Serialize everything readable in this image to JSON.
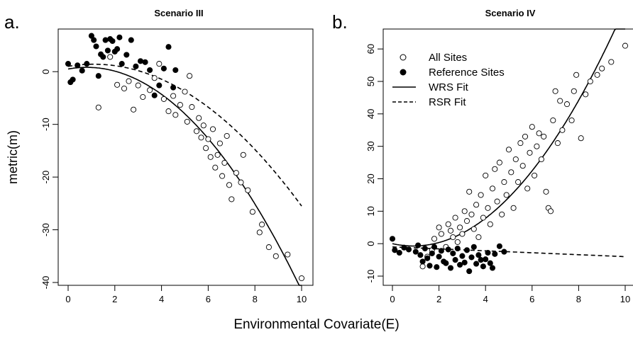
{
  "figure": {
    "panel_labels": [
      "a.",
      "b."
    ],
    "ylabel": "metric(m)",
    "xlabel": "Environmental Covariate(E)"
  },
  "legend": {
    "entries": [
      {
        "label": "All Sites",
        "marker": "open-circle"
      },
      {
        "label": "Reference Sites",
        "marker": "filled-circle"
      },
      {
        "label": "WRS Fit",
        "line": "solid"
      },
      {
        "label": "RSR Fit",
        "line": "dashed"
      }
    ],
    "placement": "top-left of panel b"
  },
  "chart_data": [
    {
      "type": "scatter",
      "title": "Scenario III",
      "xlim": [
        0,
        10
      ],
      "ylim": [
        -40,
        5
      ],
      "xticks": [
        0,
        2,
        4,
        6,
        8,
        10
      ],
      "yticks": [
        -40,
        -30,
        -20,
        -10,
        0
      ],
      "series": [
        {
          "name": "All Sites",
          "points": [
            [
              1.3,
              -6.8
            ],
            [
              1.8,
              2.8
            ],
            [
              2.1,
              -2.5
            ],
            [
              2.4,
              -3.2
            ],
            [
              2.6,
              -1.8
            ],
            [
              2.8,
              -7.2
            ],
            [
              3.0,
              -2.6
            ],
            [
              3.2,
              -4.8
            ],
            [
              3.5,
              -3.5
            ],
            [
              3.7,
              -1.2
            ],
            [
              3.9,
              1.5
            ],
            [
              4.1,
              -5.2
            ],
            [
              4.3,
              -7.5
            ],
            [
              4.5,
              -4.6
            ],
            [
              4.6,
              -8.2
            ],
            [
              4.8,
              -6.3
            ],
            [
              5.0,
              -3.8
            ],
            [
              5.1,
              -9.5
            ],
            [
              5.2,
              -0.8
            ],
            [
              5.3,
              -6.7
            ],
            [
              5.5,
              -11.3
            ],
            [
              5.6,
              -8.8
            ],
            [
              5.7,
              -12.5
            ],
            [
              5.8,
              -10.2
            ],
            [
              5.9,
              -14.5
            ],
            [
              6.0,
              -12.8
            ],
            [
              6.1,
              -16.2
            ],
            [
              6.2,
              -10.9
            ],
            [
              6.3,
              -18.2
            ],
            [
              6.4,
              -15.8
            ],
            [
              6.5,
              -13.6
            ],
            [
              6.6,
              -19.8
            ],
            [
              6.7,
              -17.3
            ],
            [
              6.8,
              -12.2
            ],
            [
              6.9,
              -21.5
            ],
            [
              7.0,
              -24.2
            ],
            [
              7.2,
              -19.2
            ],
            [
              7.4,
              -21.0
            ],
            [
              7.5,
              -15.8
            ],
            [
              7.7,
              -22.5
            ],
            [
              7.9,
              -26.6
            ],
            [
              8.2,
              -30.5
            ],
            [
              8.3,
              -29.0
            ],
            [
              8.6,
              -33.3
            ],
            [
              8.9,
              -35.0
            ],
            [
              9.4,
              -34.7
            ],
            [
              10.0,
              -39.2
            ]
          ]
        },
        {
          "name": "Reference Sites",
          "points": [
            [
              0.0,
              1.5
            ],
            [
              0.1,
              -2.0
            ],
            [
              0.2,
              -1.5
            ],
            [
              0.4,
              1.2
            ],
            [
              0.6,
              0.2
            ],
            [
              0.8,
              1.5
            ],
            [
              1.0,
              6.8
            ],
            [
              1.1,
              6.0
            ],
            [
              1.2,
              4.8
            ],
            [
              1.3,
              -0.8
            ],
            [
              1.4,
              3.3
            ],
            [
              1.5,
              2.8
            ],
            [
              1.6,
              6.0
            ],
            [
              1.7,
              4.0
            ],
            [
              1.8,
              6.2
            ],
            [
              1.9,
              5.8
            ],
            [
              2.0,
              3.8
            ],
            [
              2.1,
              4.3
            ],
            [
              2.2,
              6.5
            ],
            [
              2.3,
              1.5
            ],
            [
              2.5,
              3.2
            ],
            [
              2.7,
              6.0
            ],
            [
              2.9,
              1.0
            ],
            [
              3.1,
              2.0
            ],
            [
              3.3,
              1.8
            ],
            [
              3.5,
              0.3
            ],
            [
              3.7,
              -4.5
            ],
            [
              3.9,
              -2.6
            ],
            [
              4.1,
              0.6
            ],
            [
              4.3,
              4.7
            ],
            [
              4.5,
              -3.0
            ],
            [
              4.6,
              0.3
            ]
          ]
        }
      ],
      "fits": [
        {
          "name": "WRS Fit",
          "style": "solid",
          "coef": [
            0.5,
            0.8,
            -0.5
          ]
        },
        {
          "name": "RSR Fit",
          "style": "dashed",
          "coef": [
            1.0,
            0.75,
            -0.34
          ]
        }
      ]
    },
    {
      "type": "scatter",
      "title": "Scenario IV",
      "xlim": [
        0,
        10
      ],
      "ylim": [
        -10,
        62
      ],
      "xticks": [
        0,
        2,
        4,
        6,
        8,
        10
      ],
      "yticks": [
        -10,
        0,
        10,
        20,
        30,
        40,
        50,
        60
      ],
      "series": [
        {
          "name": "All Sites",
          "points": [
            [
              1.3,
              -7.0
            ],
            [
              1.5,
              -4.0
            ],
            [
              1.7,
              -2.0
            ],
            [
              1.8,
              1.5
            ],
            [
              2.0,
              5.0
            ],
            [
              2.1,
              3.0
            ],
            [
              2.3,
              -1.0
            ],
            [
              2.4,
              6.0
            ],
            [
              2.5,
              4.0
            ],
            [
              2.6,
              2.0
            ],
            [
              2.7,
              8.0
            ],
            [
              2.8,
              0.5
            ],
            [
              2.9,
              5.0
            ],
            [
              3.0,
              3.0
            ],
            [
              3.1,
              10.0
            ],
            [
              3.2,
              7.0
            ],
            [
              3.3,
              16.0
            ],
            [
              3.4,
              9.0
            ],
            [
              3.5,
              4.5
            ],
            [
              3.6,
              12.0
            ],
            [
              3.7,
              2.0
            ],
            [
              3.8,
              15.0
            ],
            [
              3.9,
              8.0
            ],
            [
              4.0,
              21.0
            ],
            [
              4.1,
              11.0
            ],
            [
              4.2,
              6.0
            ],
            [
              4.3,
              17.0
            ],
            [
              4.4,
              23.0
            ],
            [
              4.5,
              13.0
            ],
            [
              4.6,
              25.0
            ],
            [
              4.7,
              9.0
            ],
            [
              4.8,
              19.0
            ],
            [
              4.9,
              15.0
            ],
            [
              5.0,
              29.0
            ],
            [
              5.1,
              22.0
            ],
            [
              5.2,
              11.0
            ],
            [
              5.3,
              26.0
            ],
            [
              5.4,
              19.0
            ],
            [
              5.5,
              31.0
            ],
            [
              5.6,
              24.0
            ],
            [
              5.7,
              33.0
            ],
            [
              5.8,
              17.0
            ],
            [
              5.9,
              28.0
            ],
            [
              6.0,
              36.0
            ],
            [
              6.1,
              21.0
            ],
            [
              6.2,
              30.0
            ],
            [
              6.3,
              34.0
            ],
            [
              6.4,
              26.0
            ],
            [
              6.5,
              33.0
            ],
            [
              6.6,
              16.0
            ],
            [
              6.7,
              11.0
            ],
            [
              6.8,
              10.0
            ],
            [
              6.9,
              38.0
            ],
            [
              7.0,
              47.0
            ],
            [
              7.1,
              31.0
            ],
            [
              7.2,
              44.0
            ],
            [
              7.3,
              35.0
            ],
            [
              7.5,
              43.0
            ],
            [
              7.7,
              38.0
            ],
            [
              7.8,
              47.0
            ],
            [
              7.9,
              52.0
            ],
            [
              8.1,
              32.5
            ],
            [
              8.3,
              46.0
            ],
            [
              8.5,
              50.0
            ],
            [
              8.8,
              52.0
            ],
            [
              9.0,
              54.0
            ],
            [
              9.4,
              56.0
            ],
            [
              10.0,
              61.0
            ]
          ]
        },
        {
          "name": "Reference Sites",
          "points": [
            [
              0.0,
              1.5
            ],
            [
              0.1,
              -2.0
            ],
            [
              0.3,
              -2.8
            ],
            [
              0.5,
              -1.2
            ],
            [
              0.7,
              -1.8
            ],
            [
              1.0,
              -2.5
            ],
            [
              1.1,
              -0.5
            ],
            [
              1.2,
              -3.5
            ],
            [
              1.3,
              -5.5
            ],
            [
              1.4,
              -1.5
            ],
            [
              1.5,
              -4.5
            ],
            [
              1.6,
              -6.8
            ],
            [
              1.7,
              -3.0
            ],
            [
              1.8,
              -1.0
            ],
            [
              1.9,
              -7.2
            ],
            [
              2.0,
              -4.0
            ],
            [
              2.1,
              -2.2
            ],
            [
              2.2,
              -5.5
            ],
            [
              2.3,
              -6.0
            ],
            [
              2.4,
              -1.8
            ],
            [
              2.5,
              -7.5
            ],
            [
              2.6,
              -3.0
            ],
            [
              2.7,
              -5.0
            ],
            [
              2.8,
              -1.5
            ],
            [
              2.9,
              -6.5
            ],
            [
              3.0,
              -3.8
            ],
            [
              3.1,
              -5.8
            ],
            [
              3.2,
              -2.0
            ],
            [
              3.3,
              -8.5
            ],
            [
              3.4,
              -4.2
            ],
            [
              3.5,
              -1.0
            ],
            [
              3.6,
              -6.2
            ],
            [
              3.7,
              -3.5
            ],
            [
              3.8,
              -5.0
            ],
            [
              3.9,
              -7.0
            ],
            [
              4.0,
              -4.8
            ],
            [
              4.1,
              -2.8
            ],
            [
              4.2,
              -6.0
            ],
            [
              4.3,
              -7.5
            ],
            [
              4.4,
              -3.2
            ],
            [
              4.6,
              -0.8
            ],
            [
              4.8,
              -2.5
            ]
          ]
        }
      ],
      "fits": [
        {
          "name": "WRS Fit",
          "style": "solid",
          "coef": [
            0.0,
            -1.6,
            0.89
          ]
        },
        {
          "name": "RSR Fit",
          "style": "dashed",
          "coef": [
            -1.0,
            -0.3,
            0.0
          ]
        }
      ]
    }
  ]
}
